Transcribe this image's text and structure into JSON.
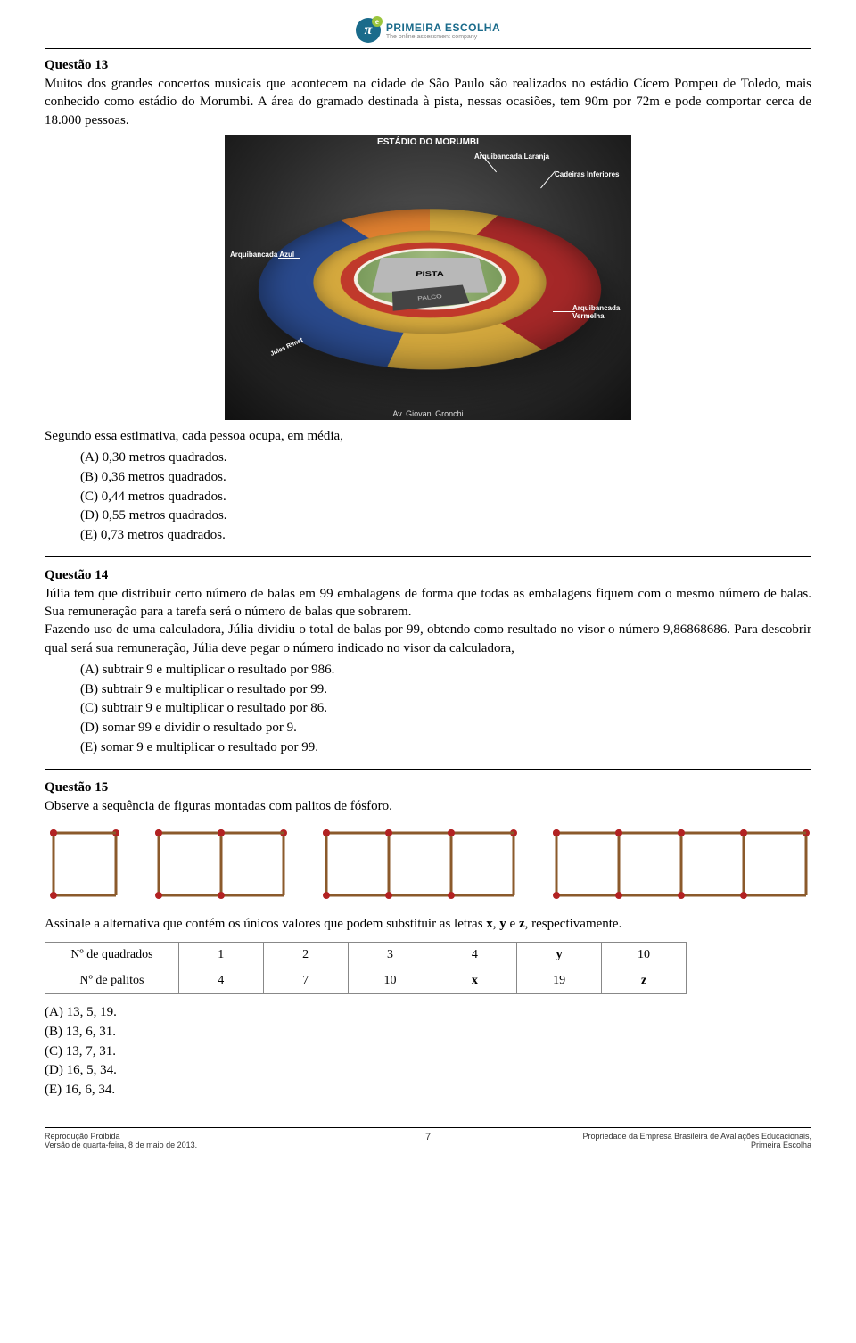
{
  "header": {
    "brand_name": "PRIMEIRA ESCOLHA",
    "brand_sub": "The online assessment company",
    "logo_letter": "π"
  },
  "q13": {
    "title": "Questão 13",
    "body": "Muitos dos grandes concertos musicais que acontecem na cidade de São Paulo são realizados no estádio Cícero Pompeu de Toledo, mais conhecido como estádio do Morumbi. A área do gramado destinada à pista, nessas ocasiões, tem 90m por 72m e pode comportar cerca de 18.000 pessoas.",
    "stadium": {
      "title": "ESTÁDIO DO MORUMBI",
      "bottom": "Av. Giovani Gronchi",
      "pista": "PISTA",
      "palco": "PALCO",
      "labels": {
        "laranja": "Arquibancada Laranja",
        "cadeiras": "Cadeiras Inferiores",
        "azul": "Arquibancada Azul",
        "vermelha": "Arquibancada Vermelha",
        "jules": "Jules Rimet"
      },
      "colors": {
        "blue": "#2a4a8d",
        "orange": "#e08030",
        "yellow": "#d4a83d",
        "red": "#a52828",
        "field": "#7a9b5c",
        "pista_bg": "#b8b8b8"
      }
    },
    "lead_in": "Segundo essa estimativa, cada pessoa ocupa, em média,",
    "options": {
      "A": "(A) 0,30 metros quadrados.",
      "B": "(B) 0,36 metros quadrados.",
      "C": "(C) 0,44 metros quadrados.",
      "D": "(D) 0,55 metros quadrados.",
      "E": "(E) 0,73 metros quadrados."
    }
  },
  "q14": {
    "title": "Questão 14",
    "body": "Júlia tem que distribuir certo número de balas em 99 embalagens de forma que todas as embalagens fiquem com o mesmo número de balas. Sua remuneração para a tarefa será o número de balas que sobrarem.\nFazendo uso de uma calculadora, Júlia dividiu o total de balas por 99, obtendo como resultado no visor o número 9,86868686. Para descobrir qual será sua remuneração, Júlia deve pegar o número indicado no visor da calculadora,",
    "options": {
      "A": "(A) subtrair 9 e multiplicar o resultado por 986.",
      "B": "(B) subtrair 9 e multiplicar o resultado por 99.",
      "C": "(C) subtrair 9 e multiplicar o resultado por 86.",
      "D": "(D) somar 99 e dividir o resultado por 9.",
      "E": "(E) somar 9 e multiplicar o resultado por 99."
    }
  },
  "q15": {
    "title": "Questão 15",
    "body": "Observe a sequência de figuras montadas com palitos de fósforo.",
    "matches": {
      "head_color": "#b22222",
      "stick_color": "#8b5a2b",
      "unit": 70,
      "head_r": 4,
      "stick_w": 3,
      "figures": [
        1,
        2,
        3,
        4
      ]
    },
    "post": "Assinale a alternativa que contém os únicos valores que podem substituir as letras ",
    "post_vars": [
      "x",
      "y",
      "z"
    ],
    "post_tail": ", respectivamente.",
    "table": {
      "row1_label": "Nº de quadrados",
      "row2_label": "Nº de palitos",
      "row1": [
        "1",
        "2",
        "3",
        "4",
        "y",
        "10"
      ],
      "row2": [
        "4",
        "7",
        "10",
        "x",
        "19",
        "z"
      ],
      "bold_cells_row1": [
        4
      ],
      "bold_cells_row2": [
        3,
        5
      ]
    },
    "options": {
      "A": "(A)  13, 5, 19.",
      "B": "(B)  13, 6, 31.",
      "C": "(C)  13, 7, 31.",
      "D": "(D)  16, 5, 34.",
      "E": "(E)  16, 6, 34."
    }
  },
  "footer": {
    "left1": "Reprodução Proibida",
    "left2": "Versão de quarta-feira, 8 de maio de 2013.",
    "page": "7",
    "right1": "Propriedade da Empresa Brasileira de Avaliações Educacionais,",
    "right2": "Primeira Escolha"
  }
}
